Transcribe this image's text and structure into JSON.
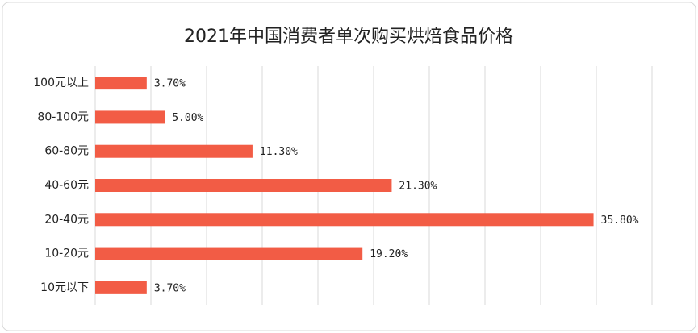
{
  "chart_data": {
    "type": "hbar",
    "title": "2021年中国消费者单次购买烘焙食品价格",
    "categories": [
      "100元以上",
      "80-100元",
      "60-80元",
      "40-60元",
      "20-40元",
      "10-20元",
      "10元以下"
    ],
    "values": [
      3.7,
      5.0,
      11.3,
      21.3,
      35.8,
      19.2,
      3.7
    ],
    "value_labels": [
      "3.70%",
      "5.00%",
      "11.30%",
      "21.30%",
      "35.80%",
      "19.20%",
      "3.70%"
    ],
    "color": "#f25c45",
    "xlim": [
      0,
      40
    ],
    "xticks": [
      0,
      4,
      8,
      12,
      16,
      20,
      24,
      28,
      32,
      36,
      40
    ],
    "grid": true
  }
}
